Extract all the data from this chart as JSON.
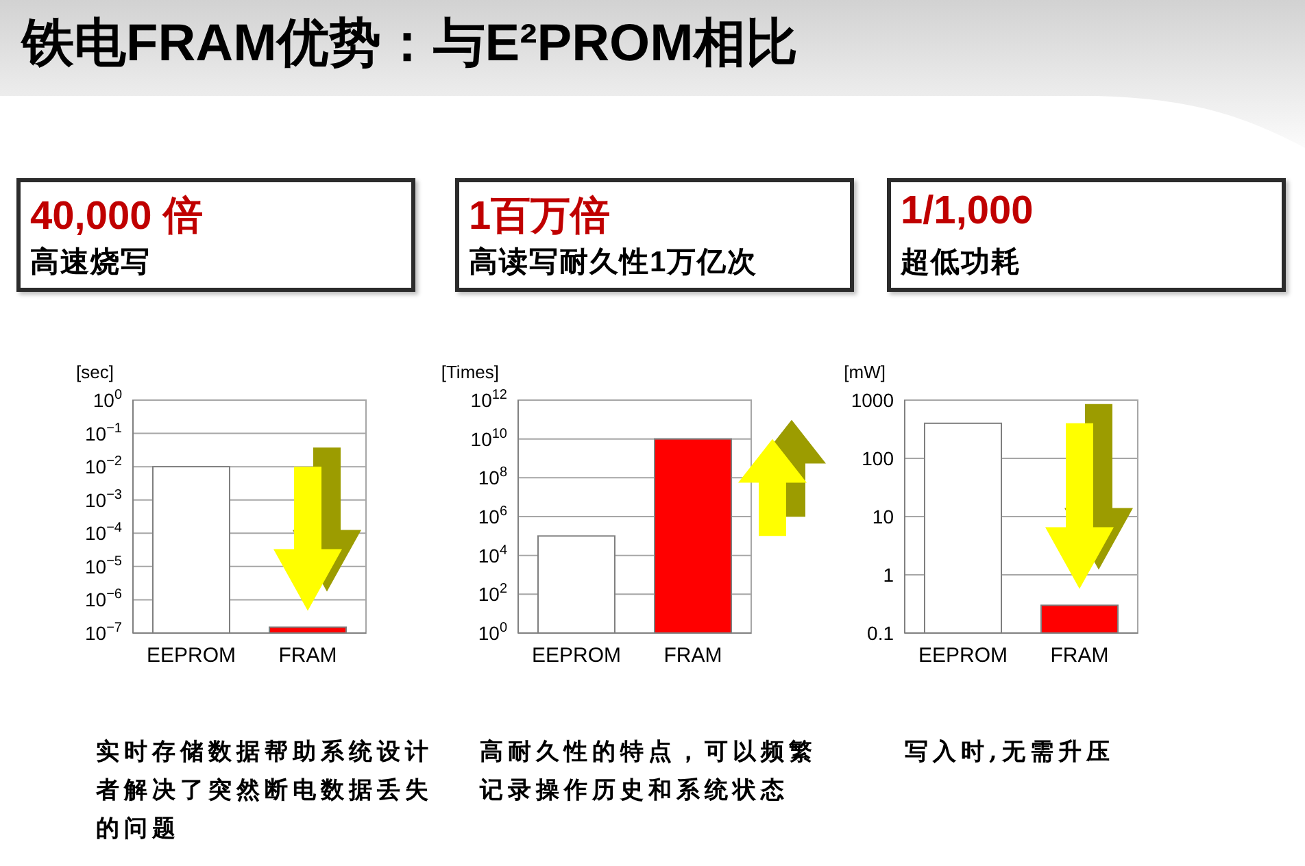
{
  "chart_data": [
    {
      "type": "other",
      "title": "铁电FRAM优势：与E²PROM相比"
    },
    {
      "type": "bar",
      "title": "40,000 倍",
      "subtitle": "高速烧写",
      "ylabel": "[sec]",
      "categories": [
        "EEPROM",
        "FRAM"
      ],
      "values": [
        0.01,
        1.5e-07
      ],
      "colors": [
        "#ffffff",
        "#ff0000"
      ],
      "log": true,
      "ylim": [
        1e-07,
        1
      ],
      "yticks": [
        {
          "value": 1,
          "label": "10$^{0}$"
        },
        {
          "value": 0.1,
          "label": "10$^{−1}$"
        },
        {
          "value": 0.01,
          "label": "10$^{−2}$"
        },
        {
          "value": 0.001,
          "label": "10$^{−3}$"
        },
        {
          "value": 0.0001,
          "label": "10$^{−4}$"
        },
        {
          "value": 1e-05,
          "label": "10$^{−5}$"
        },
        {
          "value": 1e-06,
          "label": "10$^{−6}$"
        },
        {
          "value": 1e-07,
          "label": "10$^{−7}$"
        }
      ],
      "grid": "y",
      "annotations": [
        "实时存储数据帮助系统设计者解决了突然断电数据丢失的问题"
      ]
    },
    {
      "type": "bar",
      "title": "1百万倍",
      "subtitle": "高读写耐久性1万亿次",
      "ylabel": "[Times]",
      "categories": [
        "EEPROM",
        "FRAM"
      ],
      "values": [
        100000,
        10000000000
      ],
      "colors": [
        "#ffffff",
        "#ff0000"
      ],
      "log": true,
      "ylim": [
        1,
        1000000000000
      ],
      "yticks": [
        {
          "value": 1,
          "label": "10$^{0}$"
        },
        {
          "value": 100,
          "label": "10$^{2}$"
        },
        {
          "value": 10000,
          "label": "10$^{4}$"
        },
        {
          "value": 1000000,
          "label": "10$^{6}$"
        },
        {
          "value": 100000000,
          "label": "10$^{8}$"
        },
        {
          "value": 10000000000,
          "label": "10$^{10}$"
        },
        {
          "value": 1000000000000,
          "label": "10$^{12}$"
        }
      ],
      "grid": "y",
      "annotations": [
        "高耐久性的特点，可以频繁记录操作历史和系统状态"
      ]
    },
    {
      "type": "bar",
      "title": "1/1,000",
      "subtitle": "超低功耗",
      "ylabel": "[mW]",
      "categories": [
        "EEPROM",
        "FRAM"
      ],
      "values": [
        400,
        0.3
      ],
      "colors": [
        "#ffffff",
        "#ff0000"
      ],
      "log": true,
      "ylim": [
        0.1,
        1000
      ],
      "yticks": [
        0.1,
        1,
        10,
        100,
        1000
      ],
      "grid": "y",
      "annotations": [
        "写入时,无需升压"
      ]
    }
  ]
}
